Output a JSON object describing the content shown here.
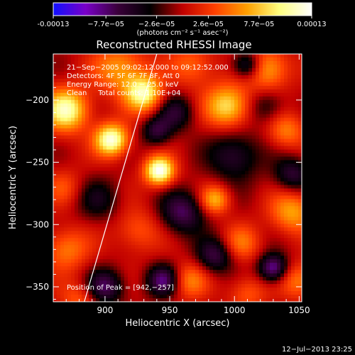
{
  "colorbar": {
    "tick_labels": [
      "-0.00013",
      "−7.7e−05",
      "−2.6e−05",
      "2.6e−05",
      "7.7e−05",
      "0.00013"
    ],
    "tick_values": [
      -0.00013,
      -7.7e-05,
      -2.6e-05,
      2.6e-05,
      7.7e-05,
      0.00013
    ],
    "range": [
      -0.00013,
      0.00013
    ],
    "unit_label": "(photons cm⁻² s⁻¹ asec⁻²)",
    "colors": [
      "#1010ff",
      "#7a00c8",
      "#3a003a",
      "#000000",
      "#c00000",
      "#ff4000",
      "#ffa000",
      "#ffff80",
      "#ffffff"
    ]
  },
  "chart_data": {
    "type": "heatmap",
    "title": "Reconstructed RHESSI Image",
    "xlabel": "Heliocentric X (arcsec)",
    "ylabel": "Heliocentric Y (arcsec)",
    "xlim": [
      860,
      1052
    ],
    "ylim": [
      -362,
      -163
    ],
    "x_ticks": [
      900,
      950,
      1000,
      1050
    ],
    "y_ticks": [
      -200,
      -250,
      -300,
      -350
    ],
    "x_tick_labels": [
      "900",
      "950",
      "1000",
      "1050"
    ],
    "y_tick_labels": [
      "−200",
      "−250",
      "−300",
      "−350"
    ],
    "annotations": [
      "21−Sep−2005 09:02:12.000 to 09:12:52.000",
      "Detectors: 4F 5F 6F 7F 8F, Att 0",
      "Energy Range: 12.0 − 25.0 keV",
      "Clean     Total counts: 1.10E+04"
    ],
    "peak_label": "Position of Peak = [942,−257]",
    "peak": [
      942,
      -257
    ],
    "limb_line": [
      [
        884,
        -362
      ],
      [
        940,
        -163
      ]
    ],
    "blobs": [
      {
        "x": 942,
        "y": -257,
        "v": 1.0,
        "s": 8
      },
      {
        "x": 905,
        "y": -232,
        "v": 0.95,
        "s": 9
      },
      {
        "x": 870,
        "y": -208,
        "v": 0.85,
        "s": 12
      },
      {
        "x": 930,
        "y": -195,
        "v": 0.8,
        "s": 10
      },
      {
        "x": 912,
        "y": -175,
        "v": 0.5,
        "s": 14
      },
      {
        "x": 968,
        "y": -172,
        "v": 0.35,
        "s": 12
      },
      {
        "x": 995,
        "y": -205,
        "v": 0.7,
        "s": 12
      },
      {
        "x": 1025,
        "y": -175,
        "v": 0.55,
        "s": 12
      },
      {
        "x": 1040,
        "y": -225,
        "v": 0.4,
        "s": 10
      },
      {
        "x": 1045,
        "y": -290,
        "v": 0.5,
        "s": 12
      },
      {
        "x": 985,
        "y": -280,
        "v": 0.55,
        "s": 8
      },
      {
        "x": 1005,
        "y": -315,
        "v": 0.35,
        "s": 10
      },
      {
        "x": 965,
        "y": -345,
        "v": 0.4,
        "s": 10
      },
      {
        "x": 1010,
        "y": -355,
        "v": 0.3,
        "s": 10
      },
      {
        "x": 1050,
        "y": -345,
        "v": 0.4,
        "s": 10
      },
      {
        "x": 925,
        "y": -305,
        "v": 0.3,
        "s": 12
      },
      {
        "x": 870,
        "y": -320,
        "v": 0.4,
        "s": 12
      },
      {
        "x": 868,
        "y": -270,
        "v": 0.25,
        "s": 10
      },
      {
        "x": 880,
        "y": -360,
        "v": 0.3,
        "s": 10
      },
      {
        "x": 940,
        "y": -225,
        "v": -0.45,
        "s": 8
      },
      {
        "x": 955,
        "y": -210,
        "v": -0.4,
        "s": 10
      },
      {
        "x": 1000,
        "y": -245,
        "v": -0.45,
        "s": 14
      },
      {
        "x": 985,
        "y": -325,
        "v": -0.5,
        "s": 10
      },
      {
        "x": 960,
        "y": -290,
        "v": -0.55,
        "s": 12
      },
      {
        "x": 945,
        "y": -345,
        "v": -0.6,
        "s": 9
      },
      {
        "x": 1010,
        "y": -172,
        "v": -0.6,
        "s": 8
      },
      {
        "x": 1030,
        "y": -335,
        "v": -0.7,
        "s": 8
      },
      {
        "x": 1045,
        "y": -260,
        "v": -0.45,
        "s": 10
      },
      {
        "x": 900,
        "y": -350,
        "v": -0.55,
        "s": 10
      },
      {
        "x": 895,
        "y": -280,
        "v": -0.3,
        "s": 12
      },
      {
        "x": 1025,
        "y": -205,
        "v": -0.3,
        "s": 10
      }
    ]
  },
  "footer": {
    "timestamp": "12−Jul−2013 23:25"
  }
}
